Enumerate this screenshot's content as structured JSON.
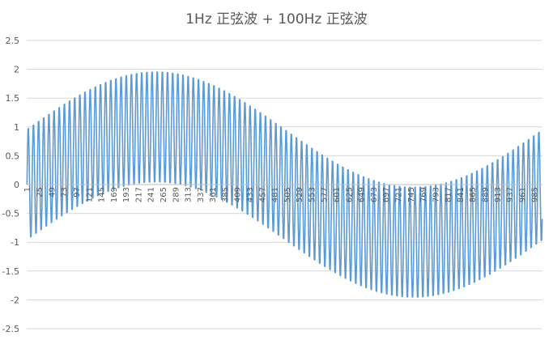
{
  "chart_data": {
    "type": "line",
    "title": "1Hz 正弦波 + 100Hz 正弦波",
    "xlabel": "",
    "ylabel": "",
    "ylim": [
      -2.5,
      2.5
    ],
    "yticks": [
      2.5,
      2,
      1.5,
      1,
      0.5,
      0,
      -0.5,
      -1,
      -1.5,
      -2,
      -2.5
    ],
    "x_range": [
      1,
      1000
    ],
    "x_tick_labels": [
      1,
      25,
      49,
      73,
      97,
      121,
      145,
      169,
      193,
      217,
      241,
      265,
      289,
      313,
      337,
      361,
      385,
      409,
      433,
      457,
      481,
      505,
      529,
      553,
      577,
      601,
      625,
      649,
      673,
      697,
      721,
      745,
      769,
      793,
      817,
      841,
      865,
      889,
      913,
      937,
      961,
      985
    ],
    "grid": true,
    "legend": "none",
    "series": [
      {
        "formula": "sin(2π·1·(n-1)/1000) + sin(2π·100·(n-1)/1000)",
        "color": "#5b9bd5"
      }
    ]
  }
}
